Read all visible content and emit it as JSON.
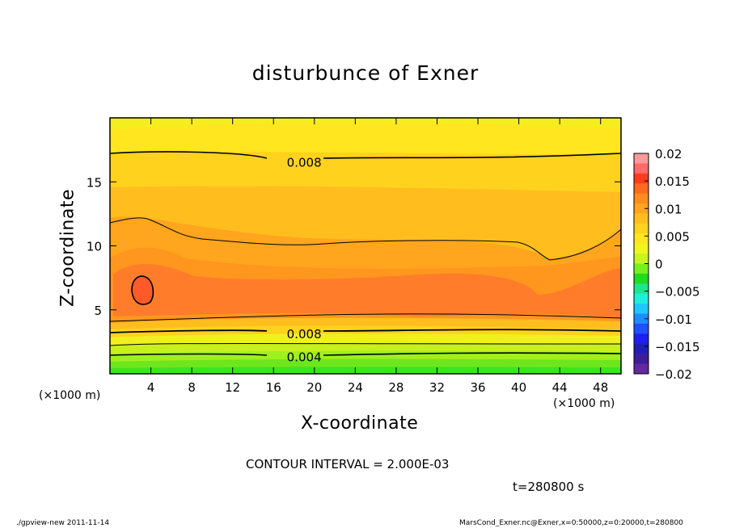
{
  "chart_data": {
    "type": "contour",
    "title": "disturbunce of Exner",
    "xlabel": "X-coordinate",
    "ylabel": "Z-coordinate",
    "x_unit": "(×1000 m)",
    "xlim": [
      0,
      50
    ],
    "ylim": [
      0,
      20
    ],
    "x_ticks": [
      4,
      8,
      12,
      16,
      20,
      24,
      28,
      32,
      36,
      40,
      44,
      48
    ],
    "y_ticks": [
      5,
      10,
      15
    ],
    "contour_labels": [
      {
        "text": "0.008",
        "x": 19,
        "z": 16.5
      },
      {
        "text": "0.008",
        "x": 19,
        "z": 3.1
      },
      {
        "text": "0.004",
        "x": 19,
        "z": 1.3
      }
    ],
    "contour_interval_text": "CONTOUR INTERVAL = 2.000E-03",
    "time_text": "t=280800 s",
    "colorbar": {
      "range": [
        -0.02,
        0.02
      ],
      "ticks": [
        "0.02",
        "0.015",
        "0.01",
        "0.005",
        "0",
        "−0.005",
        "−0.01",
        "−0.015",
        "−0.02"
      ],
      "colors": [
        "#ff9999",
        "#ff6a6a",
        "#ff3c1e",
        "#ff6a1e",
        "#ff8c1e",
        "#ffa51e",
        "#ffbe1e",
        "#ffd21e",
        "#ffe61e",
        "#f0f51e",
        "#c8f51e",
        "#78f01e",
        "#1edc1e",
        "#1ee68c",
        "#1ef0dc",
        "#1ec8ff",
        "#1e8cff",
        "#1e50ff",
        "#1e1ef0",
        "#1e1eb4",
        "#3c1e9a",
        "#6428a0"
      ]
    }
  },
  "footer_left": "./gpview-new  2011-11-14",
  "footer_right": "MarsCond_Exner.nc@Exner,x=0:50000,z=0:20000,t=280800"
}
